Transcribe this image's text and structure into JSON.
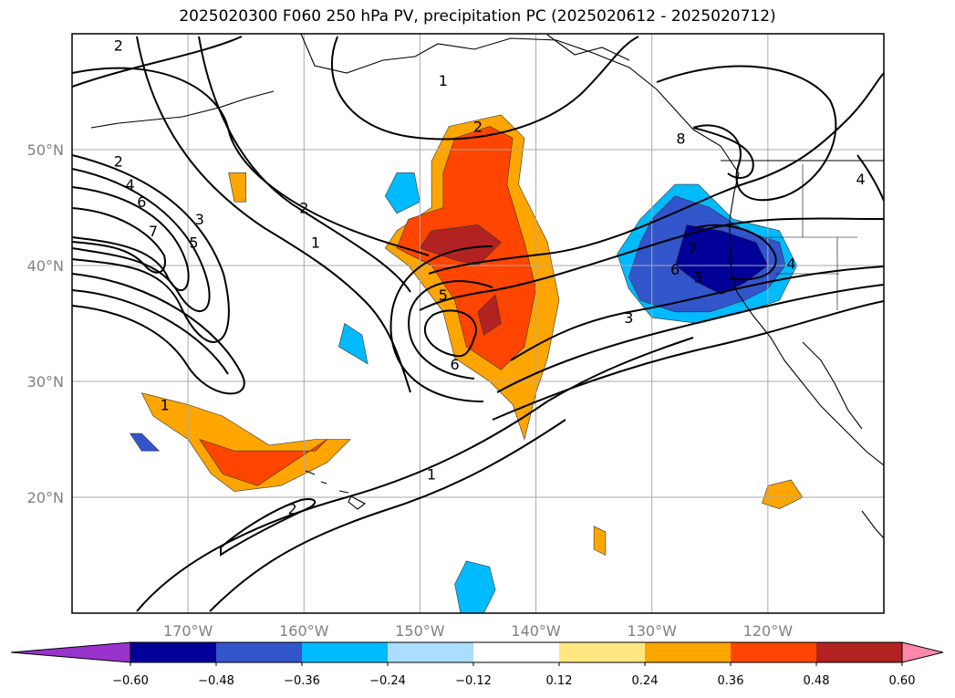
{
  "chart_data": {
    "type": "heatmap",
    "title": "2025020300 F060 250 hPa PV, precipitation PC (2025020612 - 2025020712)",
    "projection": "equirectangular map",
    "lon_range": [
      -180,
      -110
    ],
    "lat_range": [
      10,
      60
    ],
    "grid": true,
    "x_ticks": [
      {
        "value": -170,
        "label": "170°W"
      },
      {
        "value": -160,
        "label": "160°W"
      },
      {
        "value": -150,
        "label": "150°W"
      },
      {
        "value": -140,
        "label": "140°W"
      },
      {
        "value": -130,
        "label": "130°W"
      },
      {
        "value": -120,
        "label": "120°W"
      }
    ],
    "y_ticks": [
      {
        "value": 50,
        "label": "50°N"
      },
      {
        "value": 40,
        "label": "40°N"
      },
      {
        "value": 30,
        "label": "30°N"
      },
      {
        "value": 20,
        "label": "20°N"
      }
    ],
    "colorbar": {
      "extend": "both",
      "levels": [
        -0.6,
        -0.48,
        -0.36,
        -0.24,
        -0.12,
        0.12,
        0.24,
        0.36,
        0.48,
        0.6
      ],
      "tick_labels": [
        "−0.60",
        "−0.48",
        "−0.36",
        "−0.24",
        "−0.12",
        "0.12",
        "0.24",
        "0.36",
        "0.48",
        "0.60"
      ],
      "colors": [
        "#9933cc",
        "#000099",
        "#3355cc",
        "#00bbff",
        "#aaddff",
        "#ffffff",
        "#ffe680",
        "#ffa500",
        "#ff4500",
        "#b22222",
        "#ff88aa"
      ]
    },
    "contour_labels": [
      {
        "text": "2",
        "lon": -176,
        "lat": 59
      },
      {
        "text": "1",
        "lon": -148,
        "lat": 56
      },
      {
        "text": "2",
        "lon": -145,
        "lat": 52
      },
      {
        "text": "2",
        "lon": -176,
        "lat": 49
      },
      {
        "text": "4",
        "lon": -175,
        "lat": 47
      },
      {
        "text": "6",
        "lon": -174,
        "lat": 45.5
      },
      {
        "text": "7",
        "lon": -173,
        "lat": 43
      },
      {
        "text": "3",
        "lon": -169,
        "lat": 44
      },
      {
        "text": "5",
        "lon": -169.5,
        "lat": 42
      },
      {
        "text": "2",
        "lon": -160,
        "lat": 45
      },
      {
        "text": "1",
        "lon": -159,
        "lat": 42
      },
      {
        "text": "5",
        "lon": -148,
        "lat": 37.5
      },
      {
        "text": "6",
        "lon": -147,
        "lat": 31.5
      },
      {
        "text": "1",
        "lon": -172,
        "lat": 28
      },
      {
        "text": "2",
        "lon": -161,
        "lat": 19
      },
      {
        "text": "1",
        "lon": -149,
        "lat": 22
      },
      {
        "text": "3",
        "lon": -132,
        "lat": 35.5
      },
      {
        "text": "8",
        "lon": -127.5,
        "lat": 51
      },
      {
        "text": "7",
        "lon": -126.5,
        "lat": 41.5
      },
      {
        "text": "6",
        "lon": -128,
        "lat": 39.7
      },
      {
        "text": "5",
        "lon": -126,
        "lat": 39
      },
      {
        "text": "4",
        "lon": -118,
        "lat": 40.2
      },
      {
        "text": "4",
        "lon": -112,
        "lat": 47.5
      }
    ],
    "pc_regions": [
      {
        "level": 0.36,
        "points": [
          [
            -147,
            51
          ],
          [
            -144,
            52
          ],
          [
            -142,
            51
          ],
          [
            -142.5,
            47
          ],
          [
            -141,
            42
          ],
          [
            -140,
            38
          ],
          [
            -141,
            33
          ],
          [
            -143,
            31
          ],
          [
            -146,
            33
          ],
          [
            -147,
            37
          ],
          [
            -149,
            40
          ],
          [
            -151,
            41
          ],
          [
            -152,
            41.5
          ],
          [
            -151,
            44
          ],
          [
            -148,
            45
          ],
          [
            -148,
            48
          ]
        ]
      },
      {
        "level": 0.48,
        "points": [
          [
            -149,
            43
          ],
          [
            -145,
            43.5
          ],
          [
            -143,
            42
          ],
          [
            -145,
            40
          ],
          [
            -147,
            40.5
          ],
          [
            -150,
            41.5
          ]
        ]
      },
      {
        "level": 0.48,
        "points": [
          [
            -145,
            36
          ],
          [
            -143.5,
            37.5
          ],
          [
            -143,
            35
          ],
          [
            -144.5,
            34
          ]
        ]
      },
      {
        "level": 0.24,
        "points": [
          [
            -147.5,
            52
          ],
          [
            -143,
            53
          ],
          [
            -141,
            51
          ],
          [
            -141.5,
            47
          ],
          [
            -139,
            42
          ],
          [
            -138,
            37
          ],
          [
            -139,
            32
          ],
          [
            -140,
            29
          ],
          [
            -141,
            25
          ],
          [
            -142,
            28
          ],
          [
            -144,
            30
          ],
          [
            -147,
            32
          ],
          [
            -148,
            36
          ],
          [
            -151,
            40
          ],
          [
            -153,
            41.5
          ],
          [
            -152,
            43
          ],
          [
            -149,
            45
          ],
          [
            -149,
            49
          ]
        ]
      },
      {
        "level": 0.36,
        "points": [
          [
            -169,
            25
          ],
          [
            -166,
            24
          ],
          [
            -162,
            24
          ],
          [
            -159,
            24
          ],
          [
            -158,
            25
          ],
          [
            -161,
            23
          ],
          [
            -164,
            21
          ],
          [
            -167,
            22
          ]
        ]
      },
      {
        "level": 0.24,
        "points": [
          [
            -174,
            29
          ],
          [
            -170,
            28
          ],
          [
            -167,
            27
          ],
          [
            -163,
            24.5
          ],
          [
            -159,
            25
          ],
          [
            -156,
            25
          ],
          [
            -158,
            23
          ],
          [
            -162,
            21
          ],
          [
            -166,
            20.5
          ],
          [
            -168,
            22
          ],
          [
            -170,
            25
          ],
          [
            -173,
            27
          ]
        ]
      },
      {
        "level": -0.48,
        "points": [
          [
            -127,
            43.5
          ],
          [
            -124,
            43
          ],
          [
            -121,
            42
          ],
          [
            -120,
            40
          ],
          [
            -122,
            38.5
          ],
          [
            -124,
            37.5
          ],
          [
            -126,
            38.5
          ],
          [
            -128,
            40
          ]
        ]
      },
      {
        "level": -0.36,
        "points": [
          [
            -128,
            46
          ],
          [
            -125,
            45
          ],
          [
            -122,
            43
          ],
          [
            -119,
            42
          ],
          [
            -118.5,
            40
          ],
          [
            -120,
            38
          ],
          [
            -122,
            37
          ],
          [
            -125,
            36
          ],
          [
            -128,
            36
          ],
          [
            -131,
            37
          ],
          [
            -132,
            39
          ],
          [
            -131,
            42
          ],
          [
            -130,
            44
          ]
        ]
      },
      {
        "level": -0.24,
        "points": [
          [
            -128,
            47
          ],
          [
            -126,
            47
          ],
          [
            -123,
            44
          ],
          [
            -119,
            43
          ],
          [
            -117.5,
            40
          ],
          [
            -119,
            37
          ],
          [
            -122,
            36
          ],
          [
            -126,
            35
          ],
          [
            -130,
            35.5
          ],
          [
            -132,
            38
          ],
          [
            -133,
            41
          ],
          [
            -131,
            44
          ]
        ]
      },
      {
        "level": -0.24,
        "points": [
          [
            -152,
            48
          ],
          [
            -150.5,
            48
          ],
          [
            -150,
            45.5
          ],
          [
            -152,
            44.5
          ],
          [
            -153,
            46
          ]
        ]
      },
      {
        "level": -0.24,
        "points": [
          [
            -156.5,
            35
          ],
          [
            -155,
            34
          ],
          [
            -154.5,
            31.5
          ],
          [
            -157,
            33
          ]
        ]
      },
      {
        "level": -0.24,
        "points": [
          [
            -146,
            14.5
          ],
          [
            -144,
            14
          ],
          [
            -143.5,
            12
          ],
          [
            -144.5,
            10
          ],
          [
            -146.5,
            10
          ],
          [
            -147,
            12.5
          ]
        ]
      },
      {
        "level": -0.36,
        "points": [
          [
            -175,
            25.5
          ],
          [
            -174,
            24
          ],
          [
            -172.5,
            24
          ],
          [
            -174,
            25.5
          ]
        ]
      },
      {
        "level": 0.24,
        "points": [
          [
            -120,
            21
          ],
          [
            -118,
            21.5
          ],
          [
            -117,
            20
          ],
          [
            -119,
            19
          ],
          [
            -120.5,
            19.5
          ]
        ]
      },
      {
        "level": 0.24,
        "points": [
          [
            -166.5,
            48
          ],
          [
            -165,
            48
          ],
          [
            -165,
            45.5
          ],
          [
            -166,
            45.5
          ]
        ]
      },
      {
        "level": 0.24,
        "points": [
          [
            -135,
            17.5
          ],
          [
            -134,
            17
          ],
          [
            -134,
            15
          ],
          [
            -135,
            15.5
          ]
        ]
      }
    ]
  }
}
